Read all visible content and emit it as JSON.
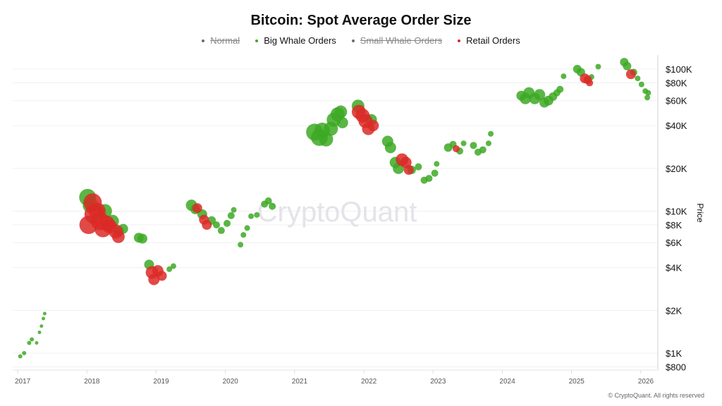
{
  "chart_data": {
    "type": "scatter",
    "title": "Bitcoin: Spot Average Order Size",
    "ylabel": "Price",
    "xlabel": "",
    "y_scale": "log",
    "ylim": [
      800,
      130000
    ],
    "xlim": [
      "2017-01-01",
      "2026-03-01"
    ],
    "grid": true,
    "legend_position": "top",
    "watermark": "CryptoQuant",
    "x_ticks": [
      "2017",
      "2018",
      "2019",
      "2020",
      "2021",
      "2022",
      "2023",
      "2024",
      "2025",
      "2026"
    ],
    "y_ticks": [
      {
        "value": 100000,
        "label": "$100K"
      },
      {
        "value": 80000,
        "label": "$80K"
      },
      {
        "value": 60000,
        "label": "$60K"
      },
      {
        "value": 40000,
        "label": "$40K"
      },
      {
        "value": 20000,
        "label": "$20K"
      },
      {
        "value": 10000,
        "label": "$10K"
      },
      {
        "value": 8000,
        "label": "$8K"
      },
      {
        "value": 6000,
        "label": "$6K"
      },
      {
        "value": 4000,
        "label": "$4K"
      },
      {
        "value": 2000,
        "label": "$2K"
      },
      {
        "value": 1000,
        "label": "$1K"
      },
      {
        "value": 800,
        "label": "$800"
      }
    ],
    "legend": [
      {
        "name": "Normal",
        "color": "#6b6b6b",
        "hidden": true
      },
      {
        "name": "Big Whale Orders",
        "color": "#3da925",
        "hidden": false
      },
      {
        "name": "Small Whale Orders",
        "color": "#6b6b6b",
        "hidden": true
      },
      {
        "name": "Retail Orders",
        "color": "#da2a27",
        "hidden": false
      }
    ],
    "point_fields": [
      "date",
      "price",
      "series",
      "relative_size"
    ],
    "points": [
      [
        "2017-01-15",
        950,
        "Big Whale Orders",
        3
      ],
      [
        "2017-02-05",
        1000,
        "Big Whale Orders",
        3
      ],
      [
        "2017-03-01",
        1180,
        "Big Whale Orders",
        3
      ],
      [
        "2017-03-15",
        1250,
        "Big Whale Orders",
        3
      ],
      [
        "2017-04-10",
        1180,
        "Big Whale Orders",
        2.5
      ],
      [
        "2017-04-25",
        1400,
        "Big Whale Orders",
        2.5
      ],
      [
        "2017-05-05",
        1550,
        "Big Whale Orders",
        2.5
      ],
      [
        "2017-05-15",
        1750,
        "Big Whale Orders",
        2.5
      ],
      [
        "2017-05-22",
        1900,
        "Big Whale Orders",
        2.5
      ],
      [
        "2018-01-05",
        12500,
        "Big Whale Orders",
        12
      ],
      [
        "2018-01-20",
        11000,
        "Big Whale Orders",
        11
      ],
      [
        "2018-02-01",
        11500,
        "Retail Orders",
        13
      ],
      [
        "2018-02-10",
        9500,
        "Retail Orders",
        14
      ],
      [
        "2018-01-10",
        8000,
        "Retail Orders",
        13
      ],
      [
        "2018-02-25",
        10000,
        "Retail Orders",
        12
      ],
      [
        "2018-03-10",
        8500,
        "Retail Orders",
        13
      ],
      [
        "2018-03-25",
        7500,
        "Retail Orders",
        12
      ],
      [
        "2018-04-05",
        10000,
        "Big Whale Orders",
        10
      ],
      [
        "2018-04-15",
        8200,
        "Retail Orders",
        11
      ],
      [
        "2018-05-01",
        7800,
        "Retail Orders",
        10
      ],
      [
        "2018-05-15",
        8500,
        "Big Whale Orders",
        9
      ],
      [
        "2018-06-01",
        7200,
        "Retail Orders",
        10
      ],
      [
        "2018-06-15",
        6600,
        "Retail Orders",
        9
      ],
      [
        "2018-06-20",
        7200,
        "Big Whale Orders",
        7
      ],
      [
        "2018-07-10",
        7500,
        "Big Whale Orders",
        7
      ],
      [
        "2018-10-01",
        6500,
        "Big Whale Orders",
        7
      ],
      [
        "2018-10-20",
        6400,
        "Big Whale Orders",
        7
      ],
      [
        "2018-11-25",
        4200,
        "Big Whale Orders",
        7
      ],
      [
        "2018-12-10",
        3700,
        "Retail Orders",
        9
      ],
      [
        "2018-12-20",
        3300,
        "Retail Orders",
        8
      ],
      [
        "2019-01-10",
        3800,
        "Retail Orders",
        8
      ],
      [
        "2019-02-01",
        3500,
        "Retail Orders",
        7
      ],
      [
        "2019-03-10",
        3900,
        "Big Whale Orders",
        4
      ],
      [
        "2019-04-01",
        4100,
        "Big Whale Orders",
        4
      ],
      [
        "2019-07-05",
        11000,
        "Big Whale Orders",
        8
      ],
      [
        "2019-07-25",
        10300,
        "Big Whale Orders",
        7
      ],
      [
        "2019-08-05",
        10500,
        "Retail Orders",
        7
      ],
      [
        "2019-09-01",
        9500,
        "Big Whale Orders",
        7
      ],
      [
        "2019-09-10",
        8700,
        "Retail Orders",
        7
      ],
      [
        "2019-09-25",
        8000,
        "Retail Orders",
        7
      ],
      [
        "2019-10-20",
        8600,
        "Big Whale Orders",
        6
      ],
      [
        "2019-11-15",
        8000,
        "Big Whale Orders",
        5
      ],
      [
        "2019-12-10",
        7300,
        "Big Whale Orders",
        5
      ],
      [
        "2020-01-10",
        8200,
        "Big Whale Orders",
        5
      ],
      [
        "2020-02-01",
        9300,
        "Big Whale Orders",
        5
      ],
      [
        "2020-02-15",
        10200,
        "Big Whale Orders",
        4
      ],
      [
        "2020-03-20",
        5800,
        "Big Whale Orders",
        4
      ],
      [
        "2020-04-05",
        6800,
        "Big Whale Orders",
        4
      ],
      [
        "2020-04-25",
        7600,
        "Big Whale Orders",
        4
      ],
      [
        "2020-05-15",
        9200,
        "Big Whale Orders",
        4
      ],
      [
        "2020-06-15",
        9400,
        "Big Whale Orders",
        4
      ],
      [
        "2020-07-25",
        11200,
        "Big Whale Orders",
        5
      ],
      [
        "2020-08-15",
        11800,
        "Big Whale Orders",
        5
      ],
      [
        "2020-09-05",
        10800,
        "Big Whale Orders",
        5
      ],
      [
        "2021-04-15",
        36000,
        "Big Whale Orders",
        12
      ],
      [
        "2021-05-10",
        33000,
        "Big Whale Orders",
        12
      ],
      [
        "2021-05-25",
        37000,
        "Big Whale Orders",
        11
      ],
      [
        "2021-06-15",
        32000,
        "Big Whale Orders",
        10
      ],
      [
        "2021-07-10",
        38000,
        "Big Whale Orders",
        10
      ],
      [
        "2021-07-25",
        44000,
        "Big Whale Orders",
        10
      ],
      [
        "2021-08-15",
        48000,
        "Big Whale Orders",
        10
      ],
      [
        "2021-09-01",
        50000,
        "Big Whale Orders",
        9
      ],
      [
        "2021-09-10",
        42000,
        "Big Whale Orders",
        8
      ],
      [
        "2021-12-01",
        55000,
        "Big Whale Orders",
        9
      ],
      [
        "2021-12-05",
        50000,
        "Retail Orders",
        10
      ],
      [
        "2021-12-25",
        47000,
        "Retail Orders",
        10
      ],
      [
        "2022-01-10",
        43000,
        "Retail Orders",
        10
      ],
      [
        "2022-01-25",
        38000,
        "Retail Orders",
        9
      ],
      [
        "2022-02-10",
        44000,
        "Big Whale Orders",
        8
      ],
      [
        "2022-02-20",
        40000,
        "Retail Orders",
        8
      ],
      [
        "2022-05-05",
        31000,
        "Big Whale Orders",
        8
      ],
      [
        "2022-05-20",
        28000,
        "Big Whale Orders",
        8
      ],
      [
        "2022-06-15",
        22000,
        "Big Whale Orders",
        8
      ],
      [
        "2022-07-01",
        20000,
        "Big Whale Orders",
        8
      ],
      [
        "2022-07-20",
        23000,
        "Retail Orders",
        9
      ],
      [
        "2022-08-10",
        22000,
        "Retail Orders",
        8
      ],
      [
        "2022-08-25",
        19500,
        "Retail Orders",
        7
      ],
      [
        "2022-09-10",
        19500,
        "Big Whale Orders",
        6
      ],
      [
        "2022-10-15",
        20500,
        "Big Whale Orders",
        5
      ],
      [
        "2022-11-15",
        16500,
        "Big Whale Orders",
        5
      ],
      [
        "2022-12-10",
        17000,
        "Big Whale Orders",
        5
      ],
      [
        "2023-01-10",
        18500,
        "Big Whale Orders",
        5
      ],
      [
        "2023-01-20",
        21500,
        "Big Whale Orders",
        4
      ],
      [
        "2023-03-20",
        28000,
        "Big Whale Orders",
        6
      ],
      [
        "2023-04-15",
        29500,
        "Big Whale Orders",
        5
      ],
      [
        "2023-05-01",
        27500,
        "Retail Orders",
        5
      ],
      [
        "2023-05-20",
        26500,
        "Big Whale Orders",
        5
      ],
      [
        "2023-06-10",
        30000,
        "Big Whale Orders",
        4
      ],
      [
        "2023-08-01",
        29000,
        "Big Whale Orders",
        5
      ],
      [
        "2023-08-25",
        26000,
        "Big Whale Orders",
        5
      ],
      [
        "2023-09-20",
        27000,
        "Big Whale Orders",
        5
      ],
      [
        "2023-10-20",
        30000,
        "Big Whale Orders",
        4
      ],
      [
        "2023-11-01",
        35000,
        "Big Whale Orders",
        4
      ],
      [
        "2024-04-10",
        65000,
        "Big Whale Orders",
        7
      ],
      [
        "2024-05-01",
        62000,
        "Big Whale Orders",
        8
      ],
      [
        "2024-05-20",
        68000,
        "Big Whale Orders",
        8
      ],
      [
        "2024-06-20",
        62000,
        "Big Whale Orders",
        8
      ],
      [
        "2024-07-15",
        66000,
        "Big Whale Orders",
        8
      ],
      [
        "2024-08-10",
        58000,
        "Big Whale Orders",
        7
      ],
      [
        "2024-09-01",
        60000,
        "Big Whale Orders",
        7
      ],
      [
        "2024-09-25",
        64000,
        "Big Whale Orders",
        6
      ],
      [
        "2024-10-15",
        68000,
        "Big Whale Orders",
        5
      ],
      [
        "2024-11-01",
        72000,
        "Big Whale Orders",
        5
      ],
      [
        "2024-11-20",
        89000,
        "Big Whale Orders",
        4
      ],
      [
        "2025-02-01",
        100000,
        "Big Whale Orders",
        6
      ],
      [
        "2025-02-20",
        95000,
        "Big Whale Orders",
        6
      ],
      [
        "2025-03-10",
        86000,
        "Retail Orders",
        7
      ],
      [
        "2025-03-25",
        84000,
        "Retail Orders",
        6
      ],
      [
        "2025-04-05",
        80000,
        "Retail Orders",
        5
      ],
      [
        "2025-04-15",
        88000,
        "Big Whale Orders",
        4
      ],
      [
        "2025-05-20",
        104000,
        "Big Whale Orders",
        4
      ],
      [
        "2025-10-05",
        112000,
        "Big Whale Orders",
        6
      ],
      [
        "2025-10-20",
        105000,
        "Big Whale Orders",
        6
      ],
      [
        "2025-11-10",
        92000,
        "Retail Orders",
        7
      ],
      [
        "2025-11-25",
        95000,
        "Big Whale Orders",
        5
      ],
      [
        "2025-12-15",
        86000,
        "Big Whale Orders",
        4
      ],
      [
        "2026-01-05",
        78000,
        "Big Whale Orders",
        4
      ],
      [
        "2026-01-25",
        70000,
        "Big Whale Orders",
        4
      ],
      [
        "2026-02-10",
        68000,
        "Big Whale Orders",
        4
      ],
      [
        "2026-02-05",
        63000,
        "Big Whale Orders",
        4
      ]
    ]
  },
  "copyright": "© CryptoQuant. All rights reserved"
}
